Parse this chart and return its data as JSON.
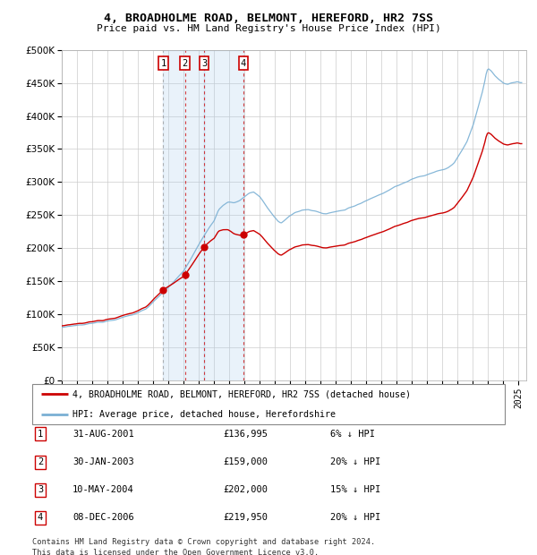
{
  "title": "4, BROADHOLME ROAD, BELMONT, HEREFORD, HR2 7SS",
  "subtitle": "Price paid vs. HM Land Registry's House Price Index (HPI)",
  "legend_property": "4, BROADHOLME ROAD, BELMONT, HEREFORD, HR2 7SS (detached house)",
  "legend_hpi": "HPI: Average price, detached house, Herefordshire",
  "footer1": "Contains HM Land Registry data © Crown copyright and database right 2024.",
  "footer2": "This data is licensed under the Open Government Licence v3.0.",
  "property_color": "#cc0000",
  "hpi_color": "#7ab0d4",
  "shade_color": "#ddeeff",
  "purchases": [
    {
      "num": 1,
      "date": "2001-08-31",
      "price": 136995,
      "label": "31-AUG-2001",
      "pct": "6%",
      "x_num": 2001.667
    },
    {
      "num": 2,
      "date": "2003-01-30",
      "price": 159000,
      "label": "30-JAN-2003",
      "pct": "20%",
      "x_num": 2003.083
    },
    {
      "num": 3,
      "date": "2004-05-10",
      "price": 202000,
      "label": "10-MAY-2004",
      "pct": "15%",
      "x_num": 2004.36
    },
    {
      "num": 4,
      "date": "2006-12-08",
      "price": 219950,
      "label": "08-DEC-2006",
      "pct": "20%",
      "x_num": 2006.933
    }
  ],
  "ylim": [
    0,
    500000
  ],
  "yticks": [
    0,
    50000,
    100000,
    150000,
    200000,
    250000,
    300000,
    350000,
    400000,
    450000,
    500000
  ],
  "xlim_start": 1995.0,
  "xlim_end": 2025.5
}
